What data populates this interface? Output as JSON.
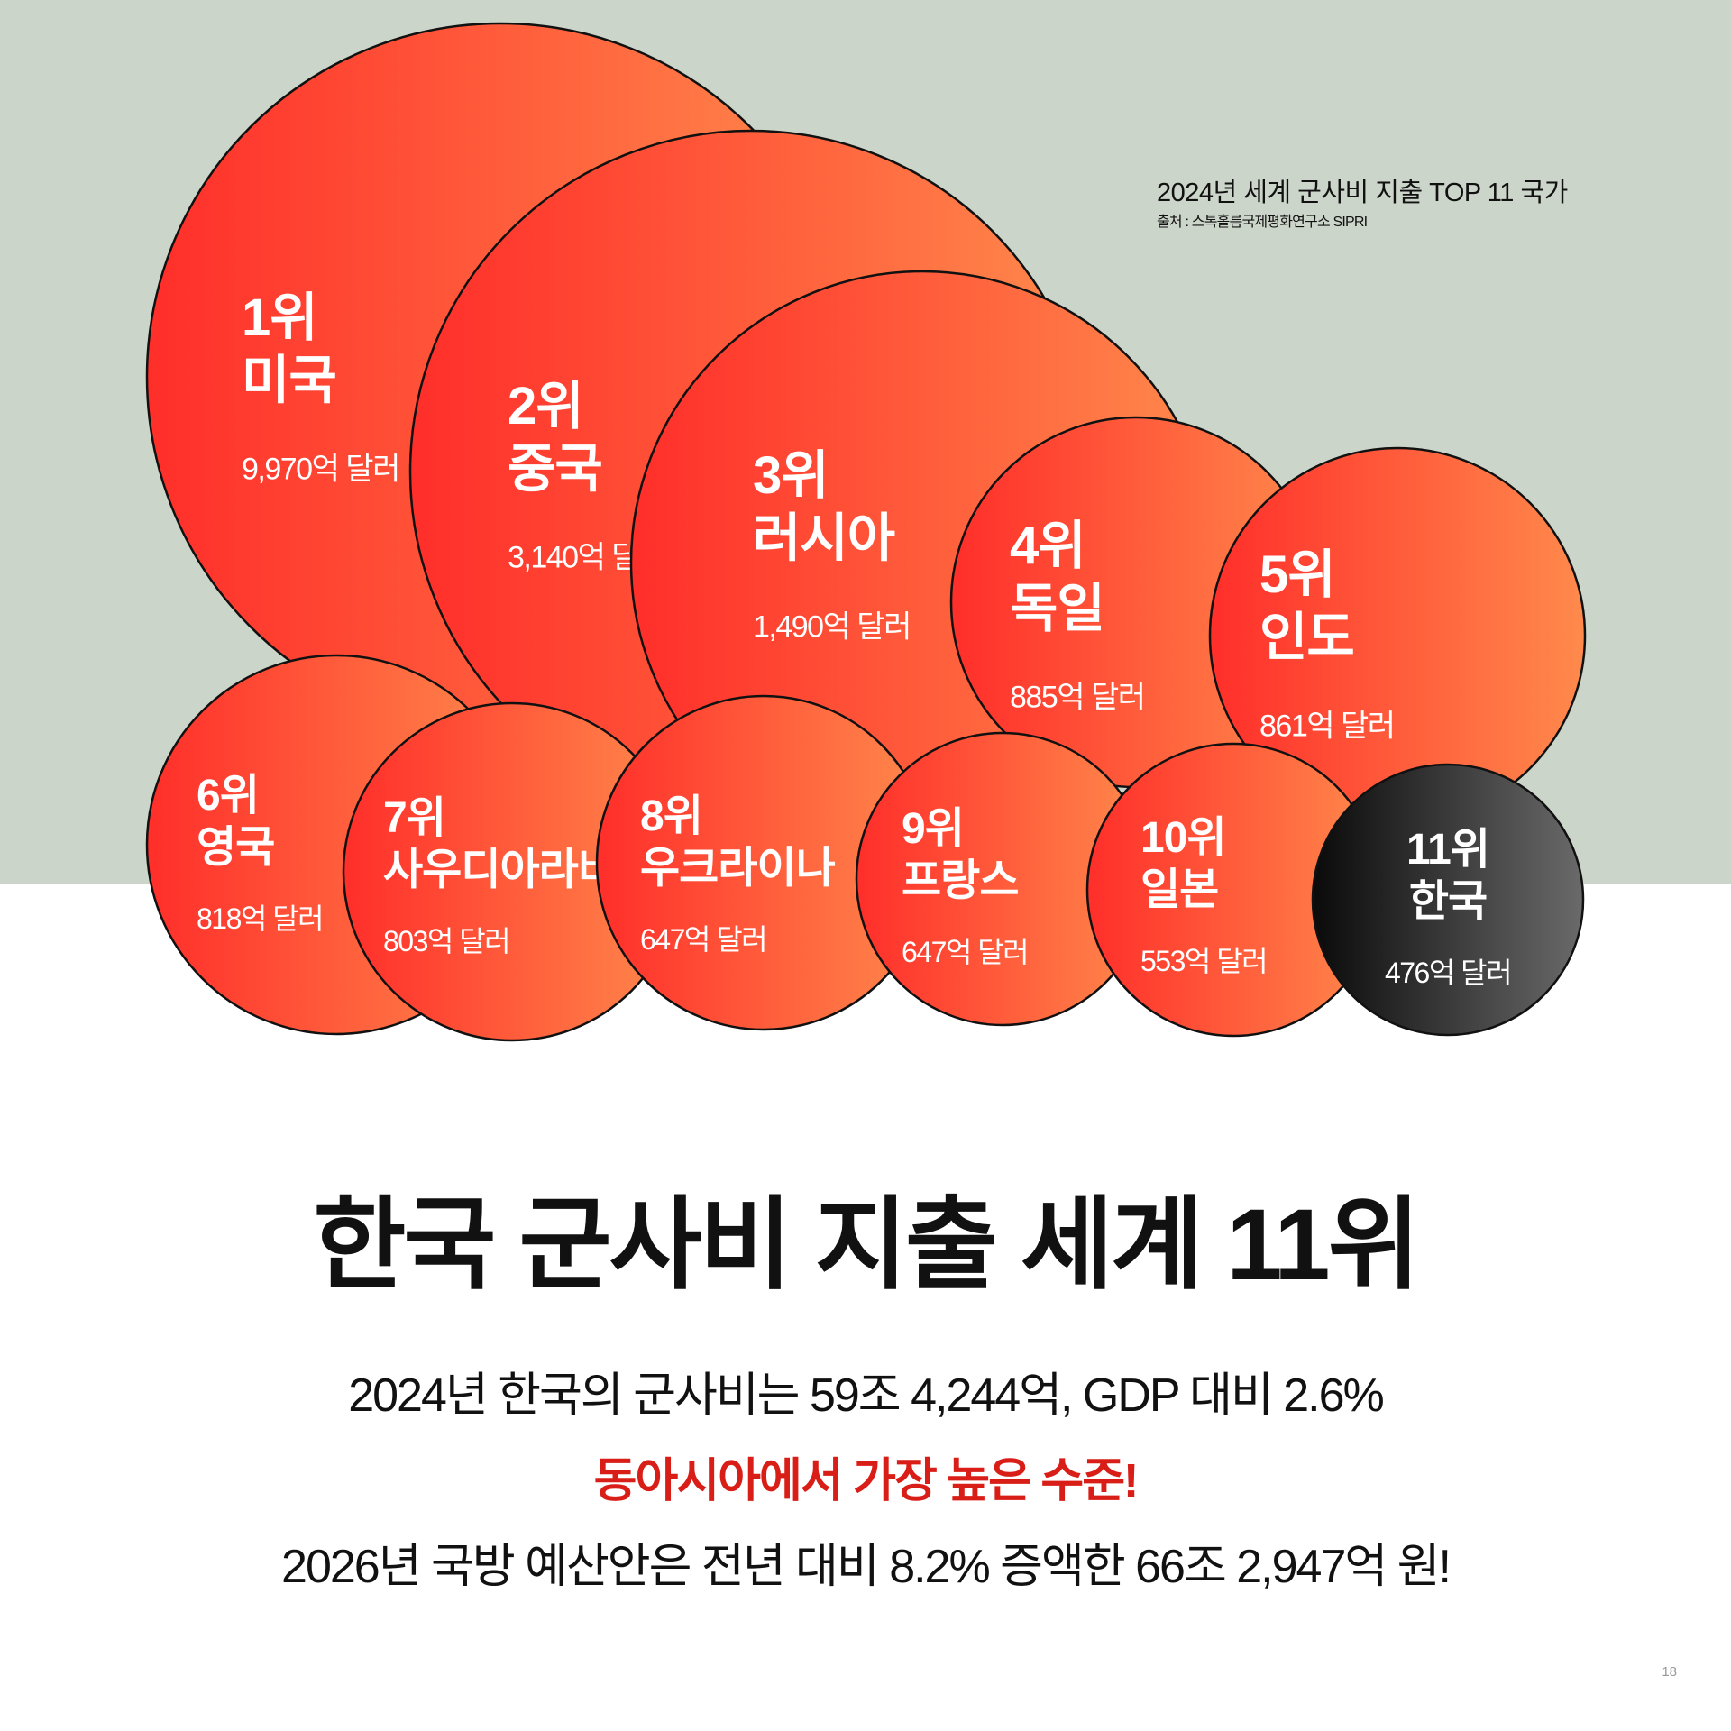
{
  "legend": {
    "title": "2024년 세계 군사비 지출 TOP 11 국가",
    "source": "출처 : 스톡홀름국제평화연구소 SIPRI"
  },
  "chart_data": {
    "type": "bubble",
    "title": "2024년 세계 군사비 지출 TOP 11 국가",
    "unit": "억 달러",
    "items": [
      {
        "rank": "1위",
        "country": "미국",
        "value": 9970,
        "value_label": "9,970억 달러",
        "highlight": false
      },
      {
        "rank": "2위",
        "country": "중국",
        "value": 3140,
        "value_label": "3,140억 달러",
        "highlight": false
      },
      {
        "rank": "3위",
        "country": "러시아",
        "value": 1490,
        "value_label": "1,490억 달러",
        "highlight": false
      },
      {
        "rank": "4위",
        "country": "독일",
        "value": 885,
        "value_label": "885억 달러",
        "highlight": false
      },
      {
        "rank": "5위",
        "country": "인도",
        "value": 861,
        "value_label": "861억 달러",
        "highlight": false
      },
      {
        "rank": "6위",
        "country": "영국",
        "value": 818,
        "value_label": "818억 달러",
        "highlight": false
      },
      {
        "rank": "7위",
        "country": "사우디아라비아",
        "value": 803,
        "value_label": "803억 달러",
        "highlight": false
      },
      {
        "rank": "8위",
        "country": "우크라이나",
        "value": 647,
        "value_label": "647억 달러",
        "highlight": false
      },
      {
        "rank": "9위",
        "country": "프랑스",
        "value": 647,
        "value_label": "647억 달러",
        "highlight": false
      },
      {
        "rank": "10위",
        "country": "일본",
        "value": 553,
        "value_label": "553억 달러",
        "highlight": false
      },
      {
        "rank": "11위",
        "country": "한국",
        "value": 476,
        "value_label": "476억 달러",
        "highlight": true
      }
    ]
  },
  "colors": {
    "band": "#ccd5c9",
    "bubble_start": "#ff2e2a",
    "bubble_end": "#ff8a4c",
    "highlight_start": "#0a0a0a",
    "highlight_end": "#6a6a6a",
    "accent_text": "#d91e18"
  },
  "headline": "한국 군사비 지출 세계 11위",
  "description": {
    "line1": "2024년 한국의 군사비는 59조 4,244억, GDP 대비 2.6%",
    "line2": "동아시아에서 가장 높은 수준!",
    "line3": "2026년 국방 예산안은 전년 대비 8.2% 증액한 66조 2,947억 원!"
  },
  "page_number": "18"
}
